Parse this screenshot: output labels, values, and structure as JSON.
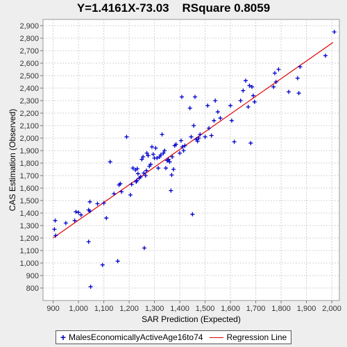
{
  "chart_data": {
    "type": "scatter",
    "title": "Y=1.4161X-73.03    RSquare 0.8059",
    "xlabel": "SAR Prediction (Expected)",
    "ylabel": "CAS Estimation (Observed)",
    "xlim": [
      860,
      2030
    ],
    "ylim": [
      700,
      2950
    ],
    "x_ticks": [
      900,
      1000,
      1100,
      1200,
      1300,
      1400,
      1500,
      1600,
      1700,
      1800,
      1900,
      2000
    ],
    "x_tick_labels": [
      "900",
      "1,000",
      "1,100",
      "1,200",
      "1,300",
      "1,400",
      "1,500",
      "1,600",
      "1,700",
      "1,800",
      "1,900",
      "2,000"
    ],
    "y_ticks": [
      800,
      900,
      1000,
      1100,
      1200,
      1300,
      1400,
      1500,
      1600,
      1700,
      1800,
      1900,
      2000,
      2100,
      2200,
      2300,
      2400,
      2500,
      2600,
      2700,
      2800,
      2900
    ],
    "y_tick_labels": [
      "800",
      "900",
      "1,000",
      "1,100",
      "1,200",
      "1,300",
      "1,400",
      "1,500",
      "1,600",
      "1,700",
      "1,800",
      "1,900",
      "2,000",
      "2,100",
      "2,200",
      "2,300",
      "2,400",
      "2,500",
      "2,600",
      "2,700",
      "2,800",
      "2,900"
    ],
    "grid": true,
    "legend": "bottom",
    "series": [
      {
        "name": "MalesEconomicallyActiveAge16to74",
        "kind": "scatter",
        "marker": "plus",
        "color": "#0000cc",
        "points": [
          [
            905,
            1270
          ],
          [
            908,
            1340
          ],
          [
            910,
            1220
          ],
          [
            950,
            1320
          ],
          [
            985,
            1340
          ],
          [
            990,
            1410
          ],
          [
            1000,
            1405
          ],
          [
            1010,
            1385
          ],
          [
            1040,
            1170
          ],
          [
            1040,
            1425
          ],
          [
            1045,
            1490
          ],
          [
            1045,
            1415
          ],
          [
            1048,
            810
          ],
          [
            1075,
            1475
          ],
          [
            1095,
            985
          ],
          [
            1100,
            1480
          ],
          [
            1110,
            1360
          ],
          [
            1125,
            1810
          ],
          [
            1140,
            1555
          ],
          [
            1155,
            1015
          ],
          [
            1160,
            1625
          ],
          [
            1165,
            1635
          ],
          [
            1170,
            1570
          ],
          [
            1190,
            2010
          ],
          [
            1205,
            1545
          ],
          [
            1210,
            1630
          ],
          [
            1215,
            1760
          ],
          [
            1225,
            1745
          ],
          [
            1228,
            1650
          ],
          [
            1230,
            1660
          ],
          [
            1232,
            1755
          ],
          [
            1235,
            1715
          ],
          [
            1240,
            1680
          ],
          [
            1245,
            1690
          ],
          [
            1250,
            1830
          ],
          [
            1255,
            1850
          ],
          [
            1258,
            1720
          ],
          [
            1260,
            1120
          ],
          [
            1265,
            1700
          ],
          [
            1268,
            1740
          ],
          [
            1270,
            1880
          ],
          [
            1275,
            1860
          ],
          [
            1280,
            1775
          ],
          [
            1285,
            1790
          ],
          [
            1290,
            1930
          ],
          [
            1295,
            1870
          ],
          [
            1300,
            1840
          ],
          [
            1305,
            1920
          ],
          [
            1310,
            1840
          ],
          [
            1315,
            1760
          ],
          [
            1320,
            1850
          ],
          [
            1325,
            1865
          ],
          [
            1330,
            2030
          ],
          [
            1335,
            1880
          ],
          [
            1340,
            1900
          ],
          [
            1345,
            1760
          ],
          [
            1350,
            1820
          ],
          [
            1355,
            1830
          ],
          [
            1360,
            1810
          ],
          [
            1365,
            1580
          ],
          [
            1368,
            1705
          ],
          [
            1370,
            1850
          ],
          [
            1375,
            1750
          ],
          [
            1380,
            1940
          ],
          [
            1385,
            1950
          ],
          [
            1400,
            1880
          ],
          [
            1405,
            1980
          ],
          [
            1408,
            2330
          ],
          [
            1410,
            1930
          ],
          [
            1415,
            1900
          ],
          [
            1420,
            1940
          ],
          [
            1440,
            2240
          ],
          [
            1445,
            2010
          ],
          [
            1450,
            1390
          ],
          [
            1455,
            2100
          ],
          [
            1460,
            2330
          ],
          [
            1465,
            1990
          ],
          [
            1470,
            1975
          ],
          [
            1475,
            2000
          ],
          [
            1480,
            2030
          ],
          [
            1500,
            2010
          ],
          [
            1510,
            2260
          ],
          [
            1515,
            2080
          ],
          [
            1525,
            2020
          ],
          [
            1535,
            2140
          ],
          [
            1540,
            2300
          ],
          [
            1550,
            2210
          ],
          [
            1560,
            2160
          ],
          [
            1600,
            2260
          ],
          [
            1605,
            2140
          ],
          [
            1615,
            1970
          ],
          [
            1640,
            2300
          ],
          [
            1650,
            2380
          ],
          [
            1660,
            2460
          ],
          [
            1670,
            2250
          ],
          [
            1675,
            2420
          ],
          [
            1680,
            1960
          ],
          [
            1685,
            2410
          ],
          [
            1690,
            2340
          ],
          [
            1695,
            2290
          ],
          [
            1770,
            2410
          ],
          [
            1775,
            2520
          ],
          [
            1780,
            2450
          ],
          [
            1790,
            2550
          ],
          [
            1830,
            2370
          ],
          [
            1865,
            2480
          ],
          [
            1870,
            2360
          ],
          [
            1875,
            2570
          ],
          [
            1975,
            2660
          ],
          [
            2010,
            2850
          ]
        ]
      },
      {
        "name": "Regression Line",
        "kind": "line",
        "color": "#e00000",
        "slope": 1.4161,
        "intercept": -73.03,
        "x": [
          900,
          2005
        ]
      }
    ]
  }
}
